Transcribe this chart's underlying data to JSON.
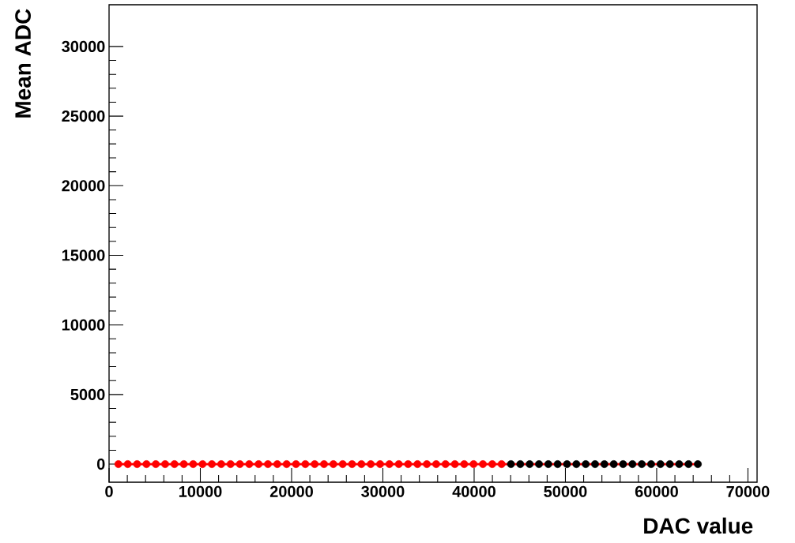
{
  "chart_data": {
    "type": "scatter",
    "xlabel": "DAC value",
    "ylabel": "Mean ADC",
    "xlim": [
      0,
      71000
    ],
    "ylim": [
      -1300,
      33000
    ],
    "xticks": [
      0,
      10000,
      20000,
      30000,
      40000,
      50000,
      60000,
      70000
    ],
    "yticks": [
      0,
      5000,
      10000,
      15000,
      20000,
      25000,
      30000
    ],
    "grid": false,
    "series": [
      {
        "marker": "circle",
        "color": "#ff0000",
        "x": [
          1024,
          2048,
          3072,
          4096,
          5120,
          6144,
          7168,
          8192,
          9216,
          10240,
          11264,
          12288,
          13312,
          14336,
          15360,
          16384,
          17408,
          18432,
          19456,
          20480,
          21504,
          22528,
          23552,
          24576,
          25600,
          26624,
          27648,
          28672,
          29696,
          30720,
          31744,
          32768,
          33792,
          34816,
          35840,
          36864,
          37888,
          38912,
          39936,
          40960,
          41984,
          43008
        ],
        "values": [
          0,
          0,
          0,
          0,
          0,
          0,
          0,
          0,
          0,
          0,
          0,
          0,
          0,
          0,
          0,
          0,
          0,
          0,
          0,
          0,
          0,
          0,
          0,
          0,
          0,
          0,
          0,
          0,
          0,
          0,
          0,
          0,
          0,
          0,
          0,
          0,
          0,
          0,
          0,
          0,
          0,
          0
        ]
      },
      {
        "marker": "circle",
        "color": "#000000",
        "x": [
          44032,
          45056,
          46080,
          47104,
          48128,
          49152,
          50176,
          51200,
          52224,
          53248,
          54272,
          55296,
          56320,
          57344,
          58368,
          59392,
          60416,
          61440,
          62464,
          63488,
          64512
        ],
        "values": [
          0,
          0,
          0,
          0,
          0,
          0,
          0,
          0,
          0,
          0,
          0,
          0,
          0,
          0,
          0,
          0,
          0,
          0,
          0,
          0,
          0
        ]
      },
      {
        "type": "line",
        "marker": "none",
        "line_style": "solid",
        "color": "#ff0000",
        "x": [
          1024,
          64512
        ],
        "values": [
          0,
          0
        ]
      }
    ]
  }
}
